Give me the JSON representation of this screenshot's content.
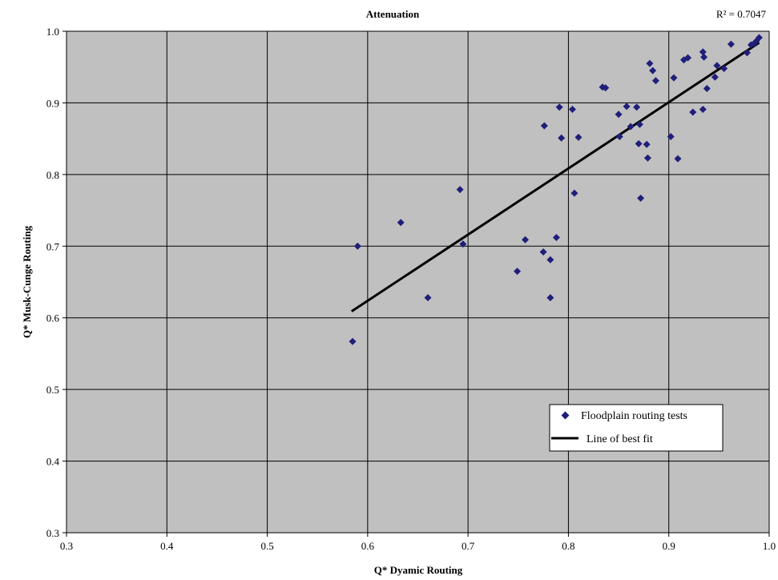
{
  "chart_data": {
    "type": "scatter",
    "title": "Attenuation",
    "annotation": "R² = 0.7047",
    "xlabel": "Q* Dyamic Routing",
    "ylabel": "Q* Musk-Cunge Routing",
    "xlim": [
      0.3,
      1.0
    ],
    "ylim": [
      0.3,
      1.0
    ],
    "xticks": [
      0.3,
      0.4,
      0.5,
      0.6,
      0.7,
      0.8,
      0.9,
      1.0
    ],
    "yticks": [
      0.3,
      0.4,
      0.5,
      0.6,
      0.7,
      0.8,
      0.9,
      1.0
    ],
    "xtick_labels": [
      "0.3",
      "0.4",
      "0.5",
      "0.6",
      "0.7",
      "0.8",
      "0.9",
      "1.0"
    ],
    "ytick_labels": [
      "0.3",
      "0.4",
      "0.5",
      "0.6",
      "0.7",
      "0.8",
      "0.9",
      "1.0"
    ],
    "grid": true,
    "legend_position": "bottom-right",
    "plot_background": "#c0c0c0",
    "series": [
      {
        "name": "Floodplain routing tests",
        "marker": "diamond",
        "color": "#1f1f7a",
        "points": [
          [
            0.585,
            0.567
          ],
          [
            0.59,
            0.7
          ],
          [
            0.633,
            0.733
          ],
          [
            0.66,
            0.628
          ],
          [
            0.692,
            0.779
          ],
          [
            0.695,
            0.703
          ],
          [
            0.749,
            0.665
          ],
          [
            0.757,
            0.709
          ],
          [
            0.775,
            0.692
          ],
          [
            0.776,
            0.868
          ],
          [
            0.782,
            0.681
          ],
          [
            0.782,
            0.628
          ],
          [
            0.788,
            0.712
          ],
          [
            0.791,
            0.894
          ],
          [
            0.793,
            0.851
          ],
          [
            0.804,
            0.891
          ],
          [
            0.806,
            0.774
          ],
          [
            0.81,
            0.852
          ],
          [
            0.834,
            0.922
          ],
          [
            0.837,
            0.921
          ],
          [
            0.85,
            0.884
          ],
          [
            0.851,
            0.853
          ],
          [
            0.858,
            0.895
          ],
          [
            0.862,
            0.867
          ],
          [
            0.868,
            0.894
          ],
          [
            0.87,
            0.843
          ],
          [
            0.871,
            0.87
          ],
          [
            0.872,
            0.767
          ],
          [
            0.878,
            0.842
          ],
          [
            0.879,
            0.823
          ],
          [
            0.881,
            0.955
          ],
          [
            0.884,
            0.945
          ],
          [
            0.887,
            0.931
          ],
          [
            0.902,
            0.853
          ],
          [
            0.905,
            0.935
          ],
          [
            0.909,
            0.822
          ],
          [
            0.915,
            0.96
          ],
          [
            0.919,
            0.963
          ],
          [
            0.924,
            0.887
          ],
          [
            0.934,
            0.891
          ],
          [
            0.934,
            0.971
          ],
          [
            0.935,
            0.964
          ],
          [
            0.938,
            0.92
          ],
          [
            0.946,
            0.936
          ],
          [
            0.948,
            0.952
          ],
          [
            0.955,
            0.948
          ],
          [
            0.962,
            0.982
          ],
          [
            0.978,
            0.97
          ],
          [
            0.982,
            0.981
          ],
          [
            0.985,
            0.983
          ],
          [
            0.987,
            0.986
          ],
          [
            0.99,
            0.991
          ]
        ]
      },
      {
        "name": "Line of best fit",
        "type": "line",
        "color": "#000000",
        "points": [
          [
            0.584,
            0.609
          ],
          [
            0.99,
            0.984
          ]
        ]
      }
    ]
  }
}
